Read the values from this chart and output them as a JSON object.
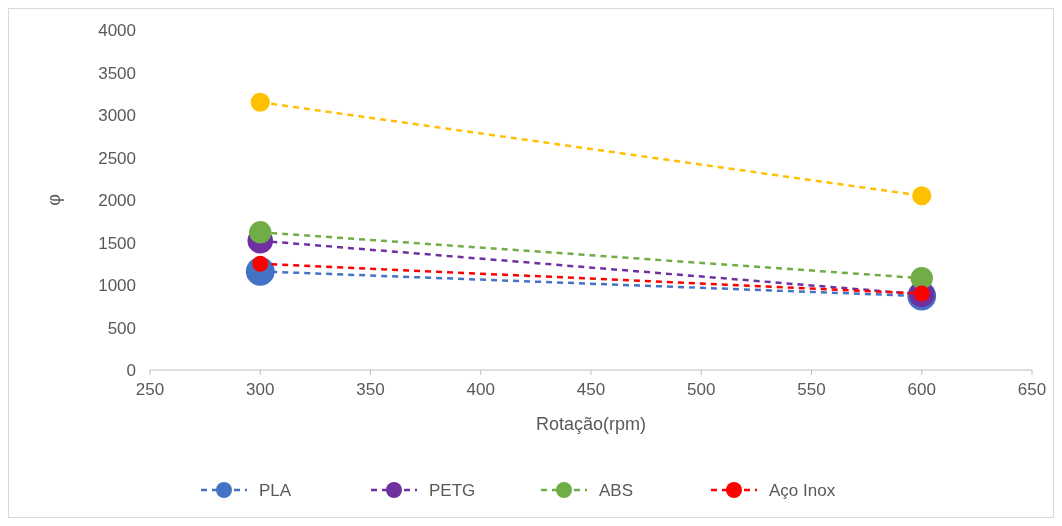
{
  "chart_data": {
    "type": "line",
    "xlabel": "Rotação(rpm)",
    "ylabel": "φ",
    "x": [
      300,
      600
    ],
    "xlim": [
      250,
      650
    ],
    "xticks": [
      250,
      300,
      350,
      400,
      450,
      500,
      550,
      600,
      650
    ],
    "ylim": [
      0,
      4000
    ],
    "yticks": [
      0,
      500,
      1000,
      1500,
      2000,
      2500,
      3000,
      3500,
      4000
    ],
    "grid": false,
    "legend": "bottom",
    "marker": "circle",
    "line_style": "dashed",
    "series": [
      {
        "name": "PLA",
        "color": "#4472c4",
        "values": [
          1160,
          870
        ]
      },
      {
        "name": "PETG",
        "color": "#7030a0",
        "values": [
          1520,
          890
        ]
      },
      {
        "name": "ABS",
        "color": "#70ad47",
        "values": [
          1620,
          1080
        ]
      },
      {
        "color": "#ffc000",
        "values": [
          3150,
          2050
        ]
      },
      {
        "name": "Aço Inox",
        "color": "#ff0000",
        "values": [
          1250,
          900
        ]
      }
    ]
  }
}
